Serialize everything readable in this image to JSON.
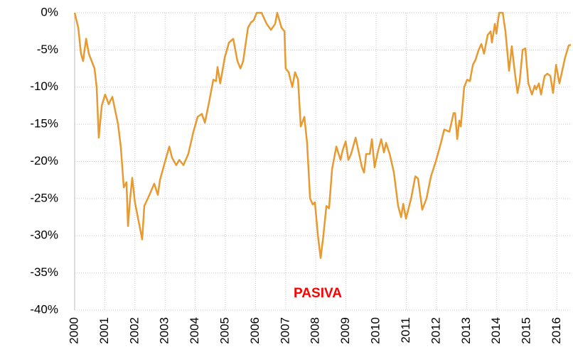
{
  "chart_data": {
    "type": "line",
    "annotation": "PASIVA",
    "color": "#e8992f",
    "grid": true,
    "xlim": [
      2000,
      2016.46
    ],
    "xticks": [
      2000,
      2001,
      2002,
      2003,
      2004,
      2005,
      2006,
      2007,
      2008,
      2009,
      2010,
      2011,
      2012,
      2013,
      2014,
      2015,
      2016
    ],
    "ylim": [
      -40,
      0
    ],
    "yticks": [
      {
        "value": 0,
        "label": "0%"
      },
      {
        "value": -5,
        "label": "-5%"
      },
      {
        "value": -10,
        "label": "-10%"
      },
      {
        "value": -15,
        "label": "-15%"
      },
      {
        "value": -20,
        "label": "-20%"
      },
      {
        "value": -25,
        "label": "-25%"
      },
      {
        "value": -30,
        "label": "-30%"
      },
      {
        "value": -35,
        "label": "-35%"
      },
      {
        "value": -40,
        "label": "-40%"
      }
    ],
    "x": [
      2000,
      2000.12,
      2000.21,
      2000.28,
      2000.38,
      2000.47,
      2000.66,
      2000.73,
      2000.8,
      2000.9,
      2001.01,
      2001.13,
      2001.25,
      2001.44,
      2001.53,
      2001.63,
      2001.72,
      2001.77,
      2001.84,
      2001.91,
      2002,
      2002.12,
      2002.24,
      2002.31,
      2002.48,
      2002.64,
      2002.76,
      2002.83,
      2003,
      2003.14,
      2003.23,
      2003.37,
      2003.47,
      2003.61,
      2003.77,
      2003.94,
      2004.08,
      2004.22,
      2004.32,
      2004.46,
      2004.6,
      2004.69,
      2004.74,
      2004.83,
      2004.98,
      2005.12,
      2005.26,
      2005.4,
      2005.5,
      2005.59,
      2005.75,
      2005.85,
      2005.94,
      2006.04,
      2006.2,
      2006.37,
      2006.51,
      2006.65,
      2006.72,
      2006.86,
      2006.96,
      2007,
      2007.1,
      2007.22,
      2007.31,
      2007.41,
      2007.5,
      2007.62,
      2007.71,
      2007.81,
      2007.9,
      2007.97,
      2008.07,
      2008.16,
      2008.25,
      2008.35,
      2008.44,
      2008.54,
      2008.68,
      2008.82,
      2008.89,
      2008.99,
      2009.08,
      2009.17,
      2009.32,
      2009.41,
      2009.53,
      2009.6,
      2009.67,
      2009.79,
      2009.86,
      2009.95,
      2010.07,
      2010.17,
      2010.26,
      2010.33,
      2010.45,
      2010.59,
      2010.73,
      2010.83,
      2010.9,
      2010.99,
      2011.16,
      2011.3,
      2011.39,
      2011.53,
      2011.67,
      2011.82,
      2011.98,
      2012.15,
      2012.26,
      2012.43,
      2012.57,
      2012.62,
      2012.69,
      2012.76,
      2012.81,
      2012.92,
      2013.02,
      2013.11,
      2013.21,
      2013.3,
      2013.4,
      2013.49,
      2013.58,
      2013.7,
      2013.8,
      2013.84,
      2013.94,
      2013.99,
      2014.08,
      2014.2,
      2014.29,
      2014.41,
      2014.5,
      2014.6,
      2014.69,
      2014.76,
      2014.86,
      2014.95,
      2015.05,
      2015.17,
      2015.26,
      2015.31,
      2015.4,
      2015.47,
      2015.59,
      2015.68,
      2015.78,
      2015.87,
      2015.97,
      2016.08,
      2016.27,
      2016.39,
      2016.46
    ],
    "values": [
      0,
      -2,
      -5.5,
      -6.5,
      -3.5,
      -5.5,
      -7.5,
      -10,
      -16.8,
      -12.5,
      -11,
      -12.3,
      -11.3,
      -15,
      -18,
      -23.5,
      -22.8,
      -28.7,
      -25,
      -22.2,
      -25.5,
      -28,
      -30.5,
      -26,
      -24.5,
      -23,
      -24.5,
      -22.5,
      -20,
      -18,
      -19.5,
      -20.5,
      -19.8,
      -20.5,
      -19,
      -16,
      -14,
      -13.6,
      -14.8,
      -12,
      -9,
      -9.2,
      -7.3,
      -9.5,
      -6,
      -4,
      -3.5,
      -6.5,
      -7.5,
      -6.5,
      -2,
      -1.3,
      -1,
      0,
      0,
      -1.5,
      -2.3,
      -1.5,
      0,
      -2,
      -2.5,
      -7.5,
      -8,
      -10,
      -8,
      -9,
      -15.3,
      -14,
      -17.5,
      -25,
      -25.8,
      -25.5,
      -30,
      -33,
      -30,
      -26,
      -26.3,
      -21,
      -18,
      -19.8,
      -18.5,
      -17.3,
      -19.8,
      -19,
      -16.8,
      -18.5,
      -20.8,
      -21.5,
      -19,
      -19,
      -17,
      -20.8,
      -18.5,
      -17,
      -18.8,
      -17.5,
      -19,
      -21.5,
      -26,
      -27.5,
      -25.7,
      -27.7,
      -25,
      -22,
      -22.3,
      -26.5,
      -25,
      -22,
      -20,
      -17.5,
      -15.7,
      -16,
      -13.5,
      -13.5,
      -17,
      -14.5,
      -15.3,
      -10,
      -9,
      -9.2,
      -7,
      -6.3,
      -5,
      -4.2,
      -5.5,
      -3,
      -2.5,
      -4,
      -1.5,
      -2.8,
      0,
      0,
      -2.5,
      -7.8,
      -4.5,
      -8,
      -10.8,
      -9.3,
      -5,
      -4.8,
      -9.5,
      -11,
      -9.8,
      -10.3,
      -9.5,
      -11,
      -8.5,
      -8.2,
      -8.5,
      -10.8,
      -7,
      -9.5,
      -6,
      -4.4,
      -4.3
    ]
  }
}
